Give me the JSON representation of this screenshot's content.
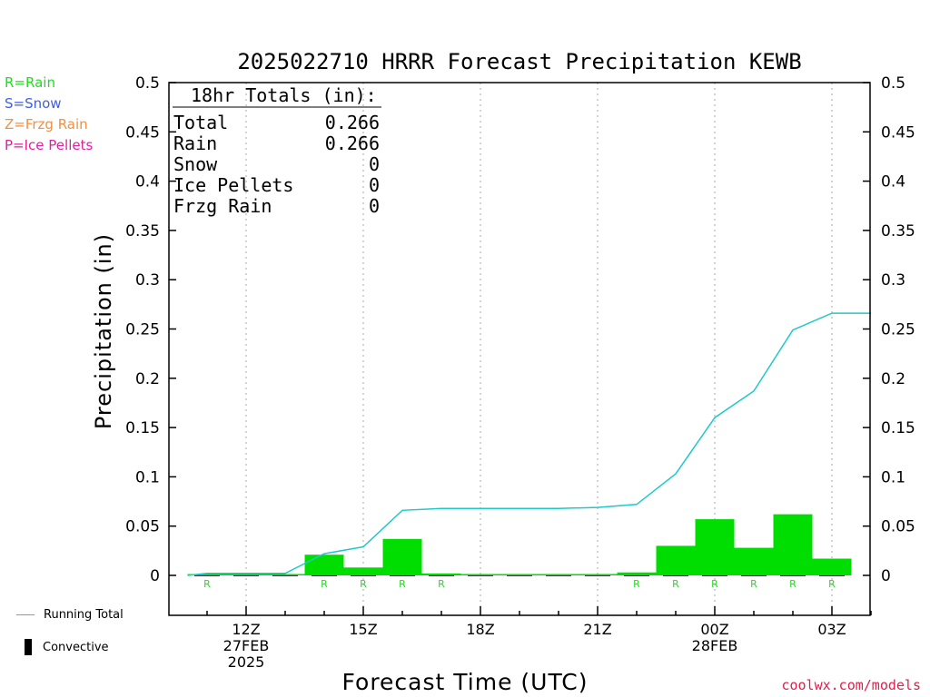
{
  "chart_data": {
    "type": "bar",
    "title": "2025022710 HRRR Forecast Precipitation KEWB",
    "ylabel": "Precipitation (in)",
    "xlabel": "Forecast Time (UTC)",
    "ylim": [
      -0.04,
      0.5
    ],
    "yticks": [
      "0",
      "0.05",
      "0.1",
      "0.15",
      "0.2",
      "0.25",
      "0.3",
      "0.35",
      "0.4",
      "0.45",
      "0.5"
    ],
    "hours": [
      11,
      12,
      13,
      14,
      15,
      16,
      17,
      18,
      19,
      20,
      21,
      22,
      23,
      0,
      1,
      2,
      3
    ],
    "hourly_precip": [
      0.001,
      0.001,
      0.0,
      0.021,
      0.008,
      0.037,
      0.002,
      0.0,
      0.0,
      0.0,
      0.0,
      0.003,
      0.03,
      0.057,
      0.028,
      0.062,
      0.017
    ],
    "running_total_x": [
      10.5,
      11,
      12,
      13,
      14,
      15,
      16,
      17,
      18,
      19,
      20,
      21,
      22,
      23,
      24,
      25,
      26,
      27,
      28
    ],
    "running_total": [
      0.0,
      0.002,
      0.002,
      0.002,
      0.022,
      0.029,
      0.066,
      0.068,
      0.068,
      0.068,
      0.068,
      0.069,
      0.072,
      0.103,
      0.16,
      0.187,
      0.249,
      0.266,
      0.266
    ],
    "ptype_markers": [
      {
        "hour": 11,
        "label": "R"
      },
      {
        "hour": 14,
        "label": "R"
      },
      {
        "hour": 15,
        "label": "R"
      },
      {
        "hour": 16,
        "label": "R"
      },
      {
        "hour": 17,
        "label": "R"
      },
      {
        "hour": 22,
        "label": "R"
      },
      {
        "hour": 23,
        "label": "R"
      },
      {
        "hour": 24,
        "label": "R"
      },
      {
        "hour": 25,
        "label": "R"
      },
      {
        "hour": 26,
        "label": "R"
      },
      {
        "hour": 27,
        "label": "R"
      }
    ],
    "xticks": [
      {
        "hour": 12,
        "lines": [
          "12Z",
          "27FEB",
          "2025"
        ]
      },
      {
        "hour": 15,
        "lines": [
          "15Z"
        ]
      },
      {
        "hour": 18,
        "lines": [
          "18Z"
        ]
      },
      {
        "hour": 21,
        "lines": [
          "21Z"
        ]
      },
      {
        "hour": 24,
        "lines": [
          "00Z",
          "28FEB"
        ]
      },
      {
        "hour": 27,
        "lines": [
          "03Z"
        ]
      }
    ],
    "totals": {
      "header": "18hr Totals (in):",
      "rows": [
        {
          "label": "Total",
          "value": "0.266"
        },
        {
          "label": "Rain",
          "value": "0.266"
        },
        {
          "label": "Snow",
          "value": "0"
        },
        {
          "label": "Ice Pellets",
          "value": "0"
        },
        {
          "label": "Frzg Rain",
          "value": "0"
        }
      ]
    },
    "colors": {
      "bar": "#00dd00",
      "running_total": "#20c8c8",
      "rain": "#20dd20",
      "snow": "#4060e0",
      "frzg_rain": "#f09040",
      "ice_pellets": "#e020a0"
    }
  },
  "ptype_legend": {
    "rain": "R=Rain",
    "snow": "S=Snow",
    "frzg_rain": "Z=Frzg Rain",
    "ice_pellets": "P=Ice Pellets"
  },
  "bottom_legend": {
    "running_total": "Running Total",
    "convective": "Convective"
  },
  "credit": "coolwx.com/models"
}
